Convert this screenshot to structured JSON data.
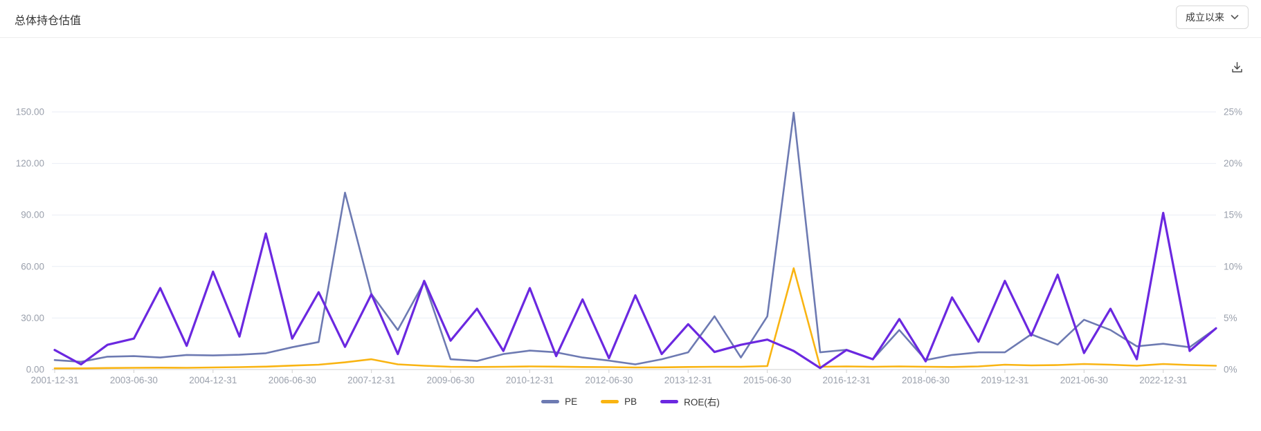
{
  "header": {
    "title": "总体持仓估值",
    "range_selector": {
      "label": "成立以来",
      "icon": "chevron-down-icon"
    }
  },
  "toolbar": {
    "download_icon": "download-icon"
  },
  "chart_data": {
    "type": "line",
    "x": [
      "2001-12-31",
      "2002-06-30",
      "2002-12-31",
      "2003-06-30",
      "2003-12-31",
      "2004-06-30",
      "2004-12-31",
      "2005-06-30",
      "2005-12-31",
      "2006-06-30",
      "2006-12-31",
      "2007-06-30",
      "2007-12-31",
      "2008-06-30",
      "2008-12-31",
      "2009-06-30",
      "2009-12-31",
      "2010-06-30",
      "2010-12-31",
      "2011-06-30",
      "2011-12-31",
      "2012-06-30",
      "2012-12-31",
      "2013-06-30",
      "2013-12-31",
      "2014-06-30",
      "2014-12-31",
      "2015-06-30",
      "2015-12-31",
      "2016-06-30",
      "2016-12-31",
      "2017-06-30",
      "2017-12-31",
      "2018-06-30",
      "2018-12-31",
      "2019-06-30",
      "2019-12-31",
      "2020-06-30",
      "2020-12-31",
      "2021-06-30",
      "2021-12-31",
      "2022-06-30",
      "2022-12-31",
      "2023-06-30",
      "2023-12-31"
    ],
    "label_interval": 3,
    "series": [
      {
        "name": "PE",
        "axis": "left",
        "color": "#6d7ab2",
        "values": [
          5.5,
          4.5,
          7.5,
          7.8,
          7.0,
          8.5,
          8.2,
          8.6,
          9.5,
          13.0,
          16.0,
          103.0,
          44.0,
          23.0,
          51.0,
          6.0,
          5.0,
          9.0,
          11.0,
          10.0,
          7.0,
          5.2,
          3.0,
          6.0,
          10.0,
          31.0,
          7.0,
          31.0,
          149.5,
          10.0,
          11.5,
          6.0,
          23.0,
          5.5,
          8.5,
          10.0,
          10.0,
          20.5,
          14.5,
          29.0,
          23.0,
          13.5,
          15.0,
          13.0,
          24.0
        ]
      },
      {
        "name": "PB",
        "axis": "left",
        "color": "#f9b412",
        "values": [
          0.7,
          0.7,
          0.9,
          1.0,
          1.1,
          1.0,
          1.2,
          1.4,
          1.7,
          2.3,
          2.8,
          4.2,
          6.0,
          3.0,
          2.2,
          1.6,
          1.5,
          1.6,
          1.8,
          1.7,
          1.5,
          1.4,
          1.2,
          1.3,
          1.5,
          1.6,
          1.6,
          2.0,
          59.0,
          1.6,
          1.8,
          1.6,
          1.8,
          1.6,
          1.5,
          1.8,
          2.8,
          2.4,
          2.6,
          3.2,
          2.8,
          2.2,
          3.2,
          2.6,
          2.2
        ]
      },
      {
        "name": "ROE(右)",
        "axis": "right",
        "color": "#6b28e0",
        "values": [
          1.9,
          0.5,
          2.4,
          3.0,
          7.9,
          2.3,
          9.5,
          3.2,
          13.2,
          3.0,
          7.5,
          2.2,
          7.3,
          1.5,
          8.6,
          2.8,
          5.9,
          1.8,
          7.9,
          1.3,
          6.8,
          1.1,
          7.2,
          1.5,
          4.4,
          1.7,
          2.4,
          2.9,
          1.8,
          0.15,
          1.9,
          1.0,
          4.9,
          0.8,
          7.0,
          2.7,
          8.6,
          3.3,
          9.2,
          1.6,
          5.9,
          1.0,
          15.2,
          1.8,
          4.0
        ]
      }
    ],
    "left_axis": {
      "ticks": [
        "0.00",
        "30.00",
        "60.00",
        "90.00",
        "120.00",
        "150.00"
      ],
      "min": 0,
      "max": 150
    },
    "right_axis": {
      "ticks": [
        "0%",
        "5%",
        "10%",
        "15%",
        "20%",
        "25%"
      ],
      "min": 0,
      "max": 25
    },
    "legend": [
      "PE",
      "PB",
      "ROE(右)"
    ],
    "legend_position": "bottom",
    "grid": true,
    "colors": {
      "gridline": "#e9edf6",
      "axis_line": "#cfcfcf",
      "tick_label": "#9aa0ac"
    }
  }
}
